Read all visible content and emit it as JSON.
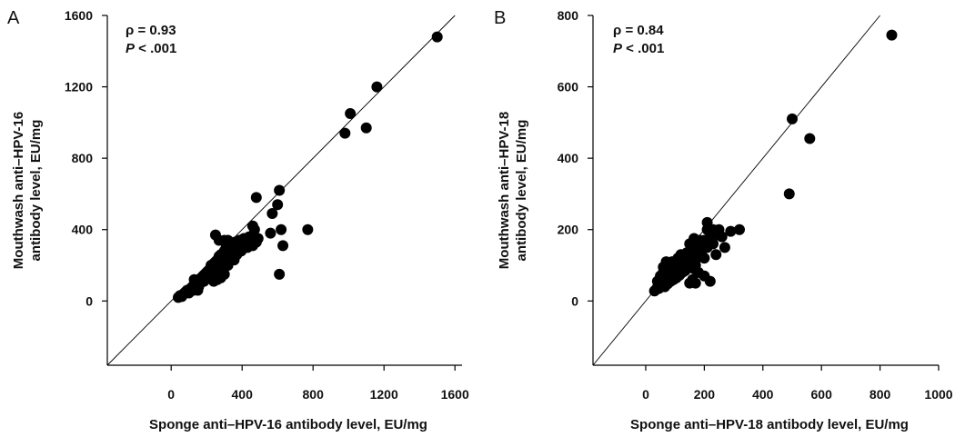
{
  "chart_data": [
    {
      "type": "scatter",
      "panel": "A",
      "stat_rho": "ρ = 0.93",
      "stat_p_symbol": "P",
      "stat_p_value": " < .001",
      "xlabel": "Sponge anti–HPV-16 antibody level, EU/mg",
      "ylabel_line1": "Mouthwash anti–HPV-16",
      "ylabel_line2": "antibody level, EU/mg",
      "xlim": [
        -360,
        1640
      ],
      "ylim": [
        -360,
        1600
      ],
      "xticks": [
        0,
        400,
        800,
        1200,
        1600
      ],
      "xtick_labels": [
        "0",
        "400",
        "800",
        "1200",
        "1600"
      ],
      "yticks": [
        0,
        400,
        800,
        1200,
        1600
      ],
      "ytick_labels": [
        "0",
        "400",
        "800",
        "1200",
        "1600"
      ],
      "identity_line": true,
      "grid": false,
      "points": [
        [
          40,
          20
        ],
        [
          50,
          30
        ],
        [
          60,
          25
        ],
        [
          70,
          40
        ],
        [
          80,
          50
        ],
        [
          90,
          60
        ],
        [
          100,
          45
        ],
        [
          110,
          70
        ],
        [
          120,
          80
        ],
        [
          125,
          60
        ],
        [
          130,
          90
        ],
        [
          140,
          100
        ],
        [
          150,
          110
        ],
        [
          155,
          80
        ],
        [
          160,
          120
        ],
        [
          165,
          100
        ],
        [
          170,
          130
        ],
        [
          180,
          140
        ],
        [
          185,
          110
        ],
        [
          190,
          150
        ],
        [
          200,
          160
        ],
        [
          205,
          130
        ],
        [
          210,
          170
        ],
        [
          215,
          140
        ],
        [
          220,
          180
        ],
        [
          225,
          200
        ],
        [
          230,
          190
        ],
        [
          235,
          150
        ],
        [
          240,
          210
        ],
        [
          245,
          170
        ],
        [
          250,
          220
        ],
        [
          255,
          180
        ],
        [
          260,
          230
        ],
        [
          265,
          200
        ],
        [
          270,
          250
        ],
        [
          275,
          150
        ],
        [
          280,
          260
        ],
        [
          285,
          210
        ],
        [
          290,
          180
        ],
        [
          295,
          240
        ],
        [
          300,
          280
        ],
        [
          305,
          220
        ],
        [
          310,
          300
        ],
        [
          315,
          250
        ],
        [
          320,
          200
        ],
        [
          325,
          270
        ],
        [
          330,
          320
        ],
        [
          335,
          240
        ],
        [
          340,
          260
        ],
        [
          345,
          290
        ],
        [
          350,
          300
        ],
        [
          355,
          230
        ],
        [
          360,
          330
        ],
        [
          365,
          280
        ],
        [
          370,
          260
        ],
        [
          375,
          310
        ],
        [
          380,
          300
        ],
        [
          385,
          340
        ],
        [
          390,
          320
        ],
        [
          395,
          280
        ],
        [
          400,
          310
        ],
        [
          410,
          350
        ],
        [
          420,
          330
        ],
        [
          430,
          300
        ],
        [
          440,
          360
        ],
        [
          450,
          330
        ],
        [
          460,
          310
        ],
        [
          470,
          400
        ],
        [
          480,
          330
        ],
        [
          490,
          350
        ],
        [
          250,
          370
        ],
        [
          270,
          340
        ],
        [
          300,
          340
        ],
        [
          320,
          340
        ],
        [
          280,
          130
        ],
        [
          260,
          120
        ],
        [
          240,
          110
        ],
        [
          300,
          150
        ],
        [
          130,
          120
        ],
        [
          150,
          60
        ],
        [
          480,
          580
        ],
        [
          460,
          420
        ],
        [
          560,
          380
        ],
        [
          570,
          490
        ],
        [
          600,
          540
        ],
        [
          610,
          620
        ],
        [
          620,
          400
        ],
        [
          630,
          310
        ],
        [
          610,
          150
        ],
        [
          770,
          400
        ],
        [
          980,
          940
        ],
        [
          1010,
          1050
        ],
        [
          1100,
          970
        ],
        [
          1160,
          1200
        ],
        [
          1500,
          1480
        ]
      ]
    },
    {
      "type": "scatter",
      "panel": "B",
      "stat_rho": "ρ = 0.84",
      "stat_p_symbol": "P",
      "stat_p_value": " < .001",
      "xlabel": "Sponge anti–HPV-18 antibody level, EU/mg",
      "ylabel_line1": "Mouthwash anti–HPV-18",
      "ylabel_line2": "antibody level, EU/mg",
      "xlim": [
        -180,
        1000
      ],
      "ylim": [
        -180,
        800
      ],
      "xticks": [
        0,
        200,
        400,
        600,
        800,
        1000
      ],
      "xtick_labels": [
        "0",
        "200",
        "400",
        "600",
        "800",
        "1000"
      ],
      "yticks": [
        0,
        200,
        400,
        600,
        800
      ],
      "ytick_labels": [
        "0",
        "200",
        "400",
        "600",
        "800"
      ],
      "identity_line": true,
      "grid": false,
      "points": [
        [
          30,
          28
        ],
        [
          35,
          32
        ],
        [
          40,
          38
        ],
        [
          45,
          35
        ],
        [
          50,
          45
        ],
        [
          55,
          42
        ],
        [
          60,
          50
        ],
        [
          65,
          40
        ],
        [
          70,
          58
        ],
        [
          75,
          48
        ],
        [
          80,
          65
        ],
        [
          85,
          55
        ],
        [
          90,
          70
        ],
        [
          95,
          60
        ],
        [
          100,
          78
        ],
        [
          105,
          65
        ],
        [
          110,
          85
        ],
        [
          115,
          72
        ],
        [
          120,
          90
        ],
        [
          125,
          80
        ],
        [
          130,
          100
        ],
        [
          135,
          85
        ],
        [
          140,
          110
        ],
        [
          145,
          95
        ],
        [
          150,
          120
        ],
        [
          155,
          100
        ],
        [
          160,
          130
        ],
        [
          165,
          90
        ],
        [
          170,
          140
        ],
        [
          175,
          120
        ],
        [
          180,
          150
        ],
        [
          190,
          160
        ],
        [
          200,
          170
        ],
        [
          210,
          150
        ],
        [
          220,
          180
        ],
        [
          230,
          200
        ],
        [
          240,
          190
        ],
        [
          250,
          200
        ],
        [
          260,
          180
        ],
        [
          270,
          150
        ],
        [
          60,
          80
        ],
        [
          70,
          90
        ],
        [
          80,
          100
        ],
        [
          90,
          110
        ],
        [
          100,
          95
        ],
        [
          110,
          120
        ],
        [
          120,
          130
        ],
        [
          130,
          110
        ],
        [
          140,
          135
        ],
        [
          150,
          140
        ],
        [
          50,
          60
        ],
        [
          60,
          70
        ],
        [
          70,
          75
        ],
        [
          80,
          85
        ],
        [
          90,
          95
        ],
        [
          100,
          105
        ],
        [
          40,
          55
        ],
        [
          50,
          70
        ],
        [
          60,
          95
        ],
        [
          70,
          110
        ],
        [
          160,
          60
        ],
        [
          170,
          50
        ],
        [
          150,
          50
        ],
        [
          180,
          80
        ],
        [
          220,
          55
        ],
        [
          200,
          70
        ],
        [
          170,
          100
        ],
        [
          190,
          130
        ],
        [
          160,
          165
        ],
        [
          210,
          200
        ],
        [
          240,
          130
        ],
        [
          250,
          185
        ],
        [
          290,
          195
        ],
        [
          320,
          200
        ],
        [
          210,
          220
        ],
        [
          200,
          120
        ],
        [
          230,
          160
        ],
        [
          185,
          170
        ],
        [
          165,
          175
        ],
        [
          150,
          160
        ],
        [
          490,
          300
        ],
        [
          500,
          510
        ],
        [
          560,
          455
        ],
        [
          840,
          745
        ]
      ]
    }
  ]
}
